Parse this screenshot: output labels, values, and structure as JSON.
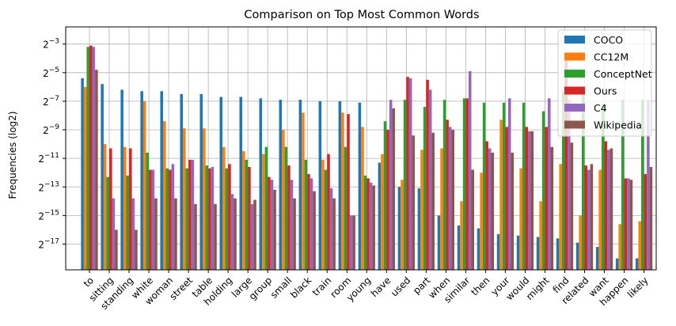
{
  "chart_data": {
    "type": "bar",
    "title": "Comparison on Top Most Common Words",
    "xlabel": "",
    "ylabel": "Frequencies (log2)",
    "y_scale": "log2",
    "ylim_exponent": [
      -18.8,
      -1.8
    ],
    "y_ticks": [
      -3,
      -5,
      -7,
      -9,
      -11,
      -13,
      -15,
      -17
    ],
    "y_tick_base": "2",
    "grid": true,
    "legend_position": "top-right",
    "categories": [
      "to",
      "sitting",
      "standing",
      "white",
      "woman",
      "street",
      "table",
      "holding",
      "large",
      "group",
      "small",
      "black",
      "train",
      "room",
      "young",
      "have",
      "used",
      "part",
      "when",
      "similar",
      "then",
      "your",
      "would",
      "might",
      "find",
      "related",
      "want",
      "happen",
      "likely"
    ],
    "series": [
      {
        "name": "COCO",
        "color": "#1f77b4",
        "values_log2": [
          -5.4,
          -5.8,
          -6.2,
          -6.3,
          -6.3,
          -6.5,
          -6.5,
          -6.7,
          -6.7,
          -6.8,
          -6.9,
          -6.9,
          -7.0,
          -7.0,
          -7.1,
          -11.3,
          -13.0,
          -13.1,
          -15.0,
          -15.7,
          -15.9,
          -16.3,
          -16.4,
          -16.5,
          -16.6,
          -16.9,
          -17.2,
          -18.0,
          -18.0
        ]
      },
      {
        "name": "CC12M",
        "color": "#ff7f0e",
        "values_log2": [
          -6.0,
          -10.0,
          -10.2,
          -7.0,
          -8.4,
          -8.9,
          -8.9,
          -10.2,
          -10.5,
          -10.7,
          -9.0,
          -7.8,
          -11.1,
          -7.8,
          -8.8,
          -10.7,
          -12.5,
          -10.4,
          -10.3,
          -14.0,
          -12.0,
          -8.3,
          -11.7,
          -14.0,
          -11.4,
          -15.0,
          -11.8,
          -15.6,
          -15.4
        ]
      },
      {
        "name": "ConceptNet",
        "color": "#2ca02c",
        "values_log2": [
          -3.2,
          -12.3,
          -12.2,
          -10.6,
          -11.7,
          -11.7,
          -11.5,
          -11.7,
          -11.1,
          -10.2,
          -10.2,
          -11.1,
          -11.8,
          -10.2,
          -12.2,
          -8.4,
          -6.9,
          -7.4,
          -6.9,
          -6.8,
          -7.1,
          -7.1,
          -7.1,
          -7.7,
          -6.3,
          -6.4,
          -7.2,
          -6.9,
          -6.9
        ]
      },
      {
        "name": "Ours",
        "color": "#d62728",
        "values_log2": [
          -3.1,
          -10.3,
          -10.3,
          -11.8,
          -11.8,
          -11.1,
          -11.7,
          -11.4,
          -11.6,
          -12.3,
          -11.5,
          -12.1,
          -10.7,
          -7.9,
          -12.4,
          -9.0,
          -5.3,
          -5.5,
          -8.3,
          -6.8,
          -9.8,
          -8.8,
          -8.8,
          -8.8,
          -3.8,
          -11.5,
          -9.8,
          -12.4,
          -12.1
        ]
      },
      {
        "name": "C4",
        "color": "#9467bd",
        "values_log2": [
          -3.2,
          -13.8,
          -13.8,
          -11.8,
          -11.4,
          -11.1,
          -11.6,
          -13.5,
          -14.2,
          -12.5,
          -12.5,
          -12.4,
          -13.1,
          -15.0,
          -12.7,
          -6.9,
          -5.4,
          -6.2,
          -8.8,
          -4.9,
          -10.3,
          -6.8,
          -9.1,
          -6.8,
          -6.9,
          -11.8,
          -10.4,
          -12.4,
          -6.9
        ]
      },
      {
        "name": "Wikipedia",
        "color": "#8c564b",
        "values_log2": [
          -4.8,
          -16.0,
          -16.0,
          -13.8,
          -13.8,
          -14.2,
          -14.2,
          -13.8,
          -13.9,
          -13.2,
          -13.8,
          -13.3,
          -13.8,
          -15.0,
          -12.9,
          -7.5,
          -9.4,
          -9.2,
          -9.0,
          -11.8,
          -10.6,
          -10.6,
          -9.1,
          -10.2,
          -9.9,
          -11.4,
          -10.3,
          -12.5,
          -11.6
        ]
      }
    ]
  }
}
